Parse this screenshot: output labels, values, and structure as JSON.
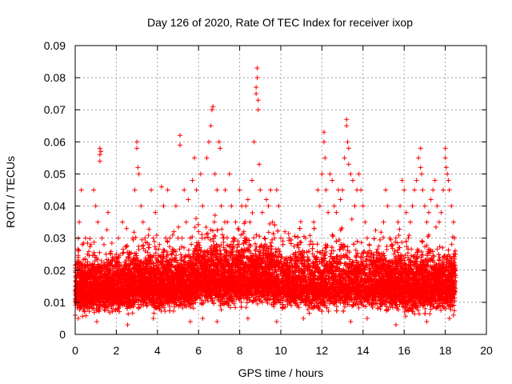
{
  "chart_data": {
    "type": "scatter",
    "title": "Day 126 of 2020, Rate Of TEC Index for receiver ixop",
    "xlabel": "GPS time / hours",
    "ylabel": "ROTI / TECUs",
    "xlim": [
      0,
      20
    ],
    "ylim": [
      0,
      0.09
    ],
    "x_ticks": [
      0,
      2,
      4,
      6,
      8,
      10,
      12,
      14,
      16,
      18,
      20
    ],
    "x_tick_labels": [
      "0",
      "2",
      "4",
      "6",
      "8",
      "10",
      "12",
      "14",
      "16",
      "18",
      "20"
    ],
    "y_ticks": [
      0,
      0.01,
      0.02,
      0.03,
      0.04,
      0.05,
      0.06,
      0.07,
      0.08,
      0.09
    ],
    "y_tick_labels": [
      "0",
      "0.01",
      "0.02",
      "0.03",
      "0.04",
      "0.05",
      "0.06",
      "0.07",
      "0.08",
      "0.09"
    ],
    "grid": true,
    "marker": "+",
    "color": "#ff0000",
    "data_x_range": [
      0,
      18.5
    ],
    "series": [
      {
        "name": "ROTI",
        "points": [
          [
            0.05,
            0.012
          ],
          [
            0.1,
            0.018
          ],
          [
            0.15,
            0.009
          ],
          [
            0.2,
            0.035
          ],
          [
            0.25,
            0.022
          ],
          [
            0.3,
            0.045
          ],
          [
            0.35,
            0.028
          ],
          [
            0.4,
            0.015
          ],
          [
            0.5,
            0.03
          ],
          [
            0.6,
            0.025
          ],
          [
            0.7,
            0.02
          ],
          [
            0.8,
            0.016
          ],
          [
            0.9,
            0.045
          ],
          [
            1.0,
            0.04
          ],
          [
            1.1,
            0.035
          ],
          [
            1.2,
            0.058
          ],
          [
            1.2,
            0.056
          ],
          [
            1.2,
            0.054
          ],
          [
            1.25,
            0.057
          ],
          [
            1.3,
            0.03
          ],
          [
            1.4,
            0.028
          ],
          [
            1.5,
            0.025
          ],
          [
            1.6,
            0.038
          ],
          [
            1.7,
            0.02
          ],
          [
            1.8,
            0.018
          ],
          [
            1.9,
            0.015
          ],
          [
            2.0,
            0.025
          ],
          [
            2.1,
            0.03
          ],
          [
            2.2,
            0.02
          ],
          [
            2.3,
            0.035
          ],
          [
            2.4,
            0.02
          ],
          [
            2.5,
            0.033
          ],
          [
            2.6,
            0.025
          ],
          [
            2.7,
            0.022
          ],
          [
            2.8,
            0.03
          ],
          [
            2.9,
            0.045
          ],
          [
            3.0,
            0.06
          ],
          [
            3.0,
            0.058
          ],
          [
            3.05,
            0.052
          ],
          [
            3.1,
            0.05
          ],
          [
            3.2,
            0.04
          ],
          [
            3.3,
            0.035
          ],
          [
            3.4,
            0.03
          ],
          [
            3.5,
            0.022
          ],
          [
            3.6,
            0.028
          ],
          [
            3.7,
            0.045
          ],
          [
            3.8,
            0.03
          ],
          [
            3.9,
            0.038
          ],
          [
            4.0,
            0.02
          ],
          [
            4.1,
            0.028
          ],
          [
            4.2,
            0.046
          ],
          [
            4.3,
            0.04
          ],
          [
            4.4,
            0.03
          ],
          [
            4.5,
            0.045
          ],
          [
            4.6,
            0.03
          ],
          [
            4.7,
            0.025
          ],
          [
            4.8,
            0.032
          ],
          [
            4.9,
            0.04
          ],
          [
            5.0,
            0.03
          ],
          [
            5.1,
            0.062
          ],
          [
            5.1,
            0.059
          ],
          [
            5.2,
            0.03
          ],
          [
            5.3,
            0.045
          ],
          [
            5.4,
            0.035
          ],
          [
            5.5,
            0.042
          ],
          [
            5.6,
            0.03
          ],
          [
            5.7,
            0.048
          ],
          [
            5.8,
            0.055
          ],
          [
            5.9,
            0.045
          ],
          [
            6.0,
            0.032
          ],
          [
            6.1,
            0.05
          ],
          [
            6.2,
            0.04
          ],
          [
            6.3,
            0.03
          ],
          [
            6.4,
            0.055
          ],
          [
            6.5,
            0.06
          ],
          [
            6.6,
            0.065
          ],
          [
            6.65,
            0.07
          ],
          [
            6.7,
            0.071
          ],
          [
            6.8,
            0.05
          ],
          [
            6.9,
            0.045
          ],
          [
            7.0,
            0.06
          ],
          [
            7.05,
            0.058
          ],
          [
            7.1,
            0.04
          ],
          [
            7.2,
            0.03
          ],
          [
            7.3,
            0.045
          ],
          [
            7.4,
            0.035
          ],
          [
            7.5,
            0.05
          ],
          [
            7.6,
            0.04
          ],
          [
            7.7,
            0.03
          ],
          [
            7.8,
            0.035
          ],
          [
            7.9,
            0.028
          ],
          [
            8.0,
            0.045
          ],
          [
            8.1,
            0.04
          ],
          [
            8.2,
            0.032
          ],
          [
            8.3,
            0.04
          ],
          [
            8.4,
            0.042
          ],
          [
            8.5,
            0.035
          ],
          [
            8.6,
            0.048
          ],
          [
            8.7,
            0.06
          ],
          [
            8.8,
            0.077
          ],
          [
            8.8,
            0.075
          ],
          [
            8.85,
            0.083
          ],
          [
            8.85,
            0.08
          ],
          [
            8.9,
            0.073
          ],
          [
            8.9,
            0.07
          ],
          [
            8.95,
            0.053
          ],
          [
            9.0,
            0.045
          ],
          [
            9.1,
            0.038
          ],
          [
            9.2,
            0.03
          ],
          [
            9.3,
            0.042
          ],
          [
            9.4,
            0.04
          ],
          [
            9.5,
            0.045
          ],
          [
            9.6,
            0.035
          ],
          [
            9.7,
            0.03
          ],
          [
            9.8,
            0.045
          ],
          [
            9.9,
            0.04
          ],
          [
            10.0,
            0.03
          ],
          [
            10.2,
            0.032
          ],
          [
            10.4,
            0.03
          ],
          [
            10.6,
            0.025
          ],
          [
            10.8,
            0.028
          ],
          [
            11.0,
            0.025
          ],
          [
            11.2,
            0.03
          ],
          [
            11.4,
            0.028
          ],
          [
            11.6,
            0.035
          ],
          [
            11.8,
            0.045
          ],
          [
            11.9,
            0.04
          ],
          [
            12.0,
            0.05
          ],
          [
            12.1,
            0.063
          ],
          [
            12.1,
            0.06
          ],
          [
            12.15,
            0.055
          ],
          [
            12.2,
            0.045
          ],
          [
            12.3,
            0.038
          ],
          [
            12.4,
            0.05
          ],
          [
            12.5,
            0.048
          ],
          [
            12.6,
            0.04
          ],
          [
            12.7,
            0.038
          ],
          [
            12.8,
            0.045
          ],
          [
            12.9,
            0.042
          ],
          [
            13.0,
            0.045
          ],
          [
            13.1,
            0.055
          ],
          [
            13.2,
            0.067
          ],
          [
            13.2,
            0.065
          ],
          [
            13.25,
            0.06
          ],
          [
            13.3,
            0.058
          ],
          [
            13.3,
            0.053
          ],
          [
            13.4,
            0.05
          ],
          [
            13.5,
            0.048
          ],
          [
            13.6,
            0.04
          ],
          [
            13.7,
            0.045
          ],
          [
            13.8,
            0.05
          ],
          [
            13.9,
            0.045
          ],
          [
            14.0,
            0.04
          ],
          [
            14.1,
            0.035
          ],
          [
            14.2,
            0.03
          ],
          [
            14.3,
            0.028
          ],
          [
            14.4,
            0.025
          ],
          [
            14.5,
            0.022
          ],
          [
            14.6,
            0.02
          ],
          [
            14.8,
            0.025
          ],
          [
            15.0,
            0.035
          ],
          [
            15.1,
            0.045
          ],
          [
            15.2,
            0.04
          ],
          [
            15.3,
            0.03
          ],
          [
            15.4,
            0.028
          ],
          [
            15.5,
            0.025
          ],
          [
            15.6,
            0.03
          ],
          [
            15.7,
            0.035
          ],
          [
            15.8,
            0.04
          ],
          [
            15.9,
            0.048
          ],
          [
            16.0,
            0.045
          ],
          [
            16.1,
            0.038
          ],
          [
            16.2,
            0.03
          ],
          [
            16.3,
            0.035
          ],
          [
            16.4,
            0.04
          ],
          [
            16.5,
            0.045
          ],
          [
            16.6,
            0.048
          ],
          [
            16.7,
            0.055
          ],
          [
            16.8,
            0.058
          ],
          [
            16.8,
            0.052
          ],
          [
            16.85,
            0.05
          ],
          [
            16.9,
            0.045
          ],
          [
            17.0,
            0.04
          ],
          [
            17.1,
            0.035
          ],
          [
            17.2,
            0.038
          ],
          [
            17.3,
            0.042
          ],
          [
            17.4,
            0.045
          ],
          [
            17.5,
            0.048
          ],
          [
            17.6,
            0.04
          ],
          [
            17.7,
            0.035
          ],
          [
            17.8,
            0.038
          ],
          [
            17.9,
            0.045
          ],
          [
            18.0,
            0.058
          ],
          [
            18.0,
            0.055
          ],
          [
            18.05,
            0.052
          ],
          [
            18.1,
            0.05
          ],
          [
            18.15,
            0.048
          ],
          [
            18.2,
            0.045
          ],
          [
            18.3,
            0.04
          ],
          [
            18.4,
            0.035
          ],
          [
            18.45,
            0.03
          ],
          [
            18.5,
            0.025
          ],
          [
            18.5,
            0.02
          ],
          [
            0.15,
            0.005
          ],
          [
            1.05,
            0.004
          ],
          [
            2.55,
            0.003
          ],
          [
            3.8,
            0.005
          ],
          [
            5.6,
            0.004
          ],
          [
            6.2,
            0.005
          ],
          [
            6.9,
            0.004
          ],
          [
            8.4,
            0.005
          ],
          [
            9.8,
            0.004
          ],
          [
            11.1,
            0.005
          ],
          [
            13.4,
            0.004
          ],
          [
            14.2,
            0.005
          ],
          [
            15.6,
            0.003
          ],
          [
            17.1,
            0.004
          ],
          [
            18.2,
            0.005
          ],
          [
            18.4,
            0.006
          ]
        ],
        "dense_band": {
          "description_level": "bulk of samples",
          "segments": [
            {
              "x": [
                0.0,
                2.8
              ],
              "y_low": 0.005,
              "y_mid": 0.014,
              "y_high": 0.028
            },
            {
              "x": [
                2.8,
                5.8
              ],
              "y_low": 0.006,
              "y_mid": 0.015,
              "y_high": 0.03
            },
            {
              "x": [
                5.8,
                9.6
              ],
              "y_low": 0.007,
              "y_mid": 0.017,
              "y_high": 0.034
            },
            {
              "x": [
                9.6,
                14.8
              ],
              "y_low": 0.006,
              "y_mid": 0.015,
              "y_high": 0.032
            },
            {
              "x": [
                14.8,
                18.5
              ],
              "y_low": 0.005,
              "y_mid": 0.015,
              "y_high": 0.03
            }
          ],
          "samples_per_hour": 600
        }
      }
    ]
  }
}
